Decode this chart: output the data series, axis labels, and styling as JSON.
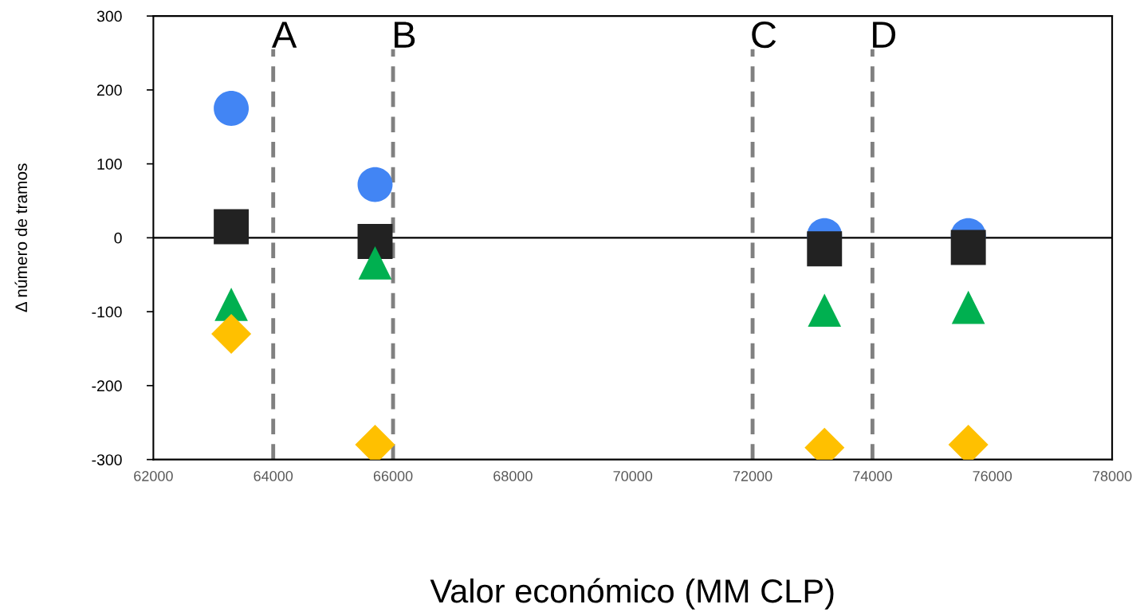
{
  "chart_data": {
    "type": "scatter",
    "xlabel": "Valor económico (MM CLP)",
    "ylabel": "Δ número de tramos",
    "xlim": [
      62000,
      78000
    ],
    "xticks": [
      62000,
      64000,
      66000,
      68000,
      70000,
      72000,
      74000,
      76000,
      78000
    ],
    "ylim": [
      -300,
      300
    ],
    "yticks": [
      -300,
      -200,
      -100,
      0,
      100,
      200,
      300
    ],
    "grid": false,
    "legend": false,
    "x": [
      63300,
      65700,
      73200,
      75600
    ],
    "series": [
      {
        "color": "#4285f4",
        "marker": "circle",
        "values": [
          175,
          72,
          3,
          3
        ]
      },
      {
        "color": "#222222",
        "marker": "square",
        "values": [
          15,
          -5,
          -15,
          -13
        ]
      },
      {
        "color": "#00b050",
        "marker": "triangle",
        "values": [
          -90,
          -34,
          -98,
          -94
        ]
      },
      {
        "color": "#ffc000",
        "marker": "diamond",
        "values": [
          -130,
          -280,
          -284,
          -280
        ]
      }
    ],
    "ref_lines": [
      {
        "axis": "y",
        "value": 0,
        "color": "#000000",
        "line_style": "solid"
      },
      {
        "axis": "x",
        "value": 64000,
        "label": "A",
        "color": "#808080",
        "line_style": "dashed"
      },
      {
        "axis": "x",
        "value": 66000,
        "label": "B",
        "color": "#808080",
        "line_style": "dashed"
      },
      {
        "axis": "x",
        "value": 72000,
        "label": "C",
        "color": "#808080",
        "line_style": "dashed"
      },
      {
        "axis": "x",
        "value": 74000,
        "label": "D",
        "color": "#808080",
        "line_style": "dashed"
      }
    ]
  }
}
